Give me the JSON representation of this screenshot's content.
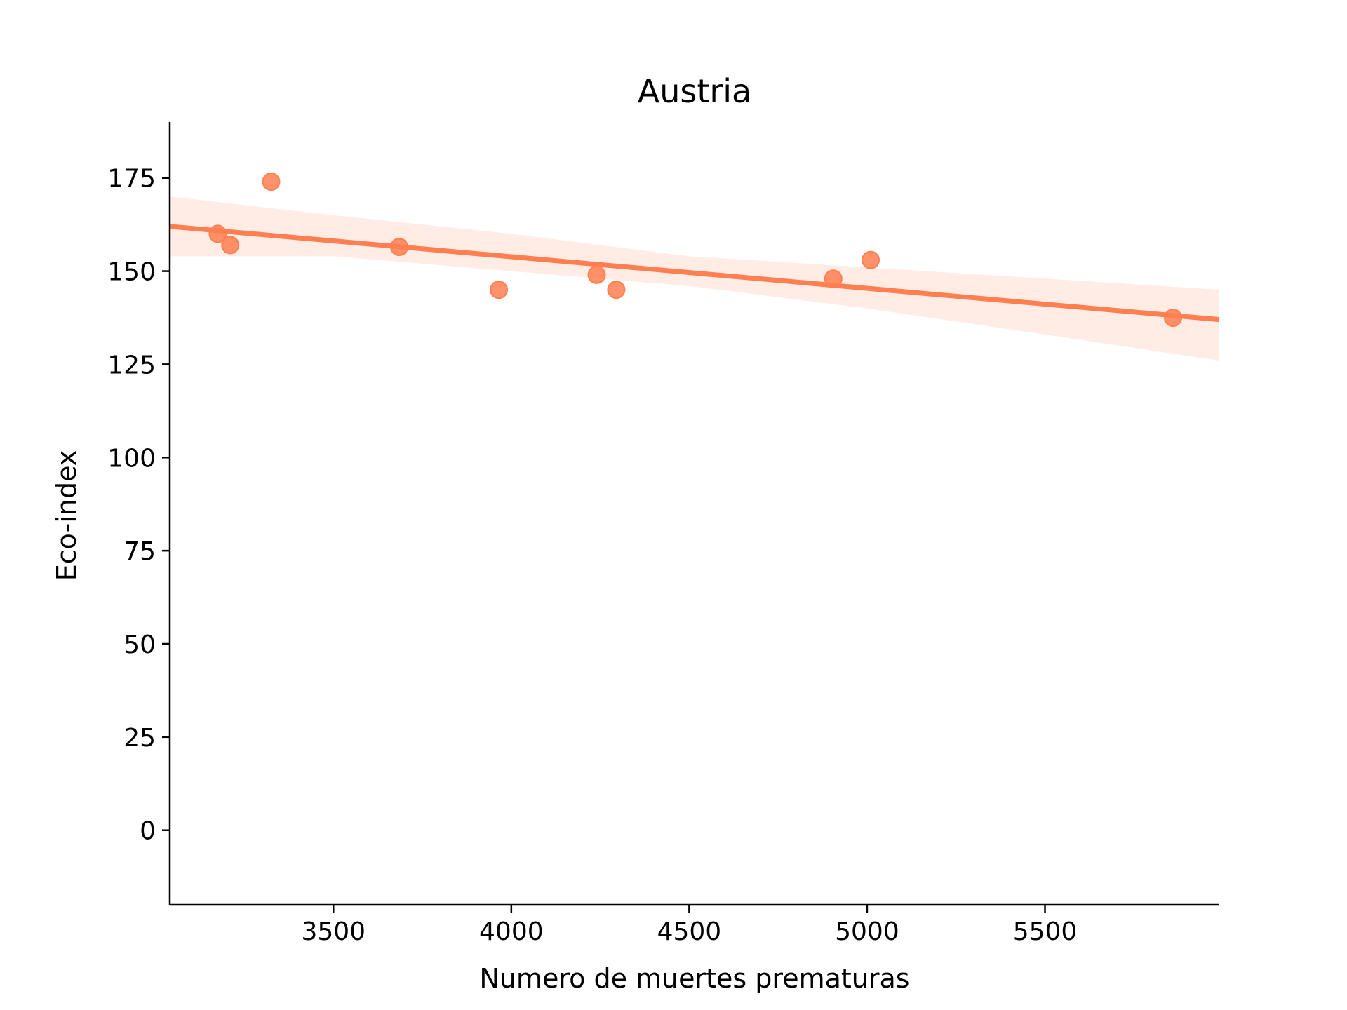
{
  "chart_data": {
    "type": "scatter",
    "title": "Austria",
    "xlabel": "Numero de muertes prematuras",
    "ylabel": "Eco-index",
    "xlim": [
      3040,
      5990
    ],
    "ylim": [
      -20,
      190
    ],
    "xticks": [
      3500,
      4000,
      4500,
      5000,
      5500
    ],
    "yticks": [
      0,
      25,
      50,
      75,
      100,
      125,
      150,
      175
    ],
    "grid": false,
    "legend": "none",
    "color": "#ff7f50",
    "points": [
      {
        "x": 3175,
        "y": 160
      },
      {
        "x": 3210,
        "y": 157
      },
      {
        "x": 3325,
        "y": 174
      },
      {
        "x": 3685,
        "y": 156.5
      },
      {
        "x": 3965,
        "y": 145
      },
      {
        "x": 4240,
        "y": 149
      },
      {
        "x": 4295,
        "y": 145
      },
      {
        "x": 4905,
        "y": 148
      },
      {
        "x": 5010,
        "y": 153
      },
      {
        "x": 5860,
        "y": 137.5
      }
    ],
    "regression": {
      "x": [
        3040,
        5990
      ],
      "y": [
        162,
        137
      ]
    },
    "confidence_band": {
      "x": [
        3040,
        3500,
        4000,
        4500,
        5000,
        5500,
        5990
      ],
      "upper": [
        170,
        165,
        160,
        154,
        151,
        148,
        145
      ],
      "lower": [
        154,
        154,
        150,
        146,
        140,
        133,
        126
      ]
    }
  }
}
